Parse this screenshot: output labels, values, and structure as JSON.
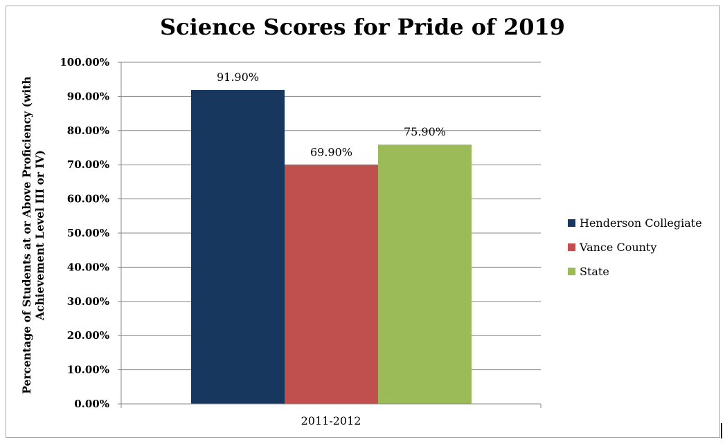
{
  "chart_data": {
    "type": "bar",
    "title": "Science Scores for Pride of 2019",
    "ylabel": "Percentage of Students at or Above Proficiency (with Achievement Level III or IV)",
    "xlabel": "",
    "categories": [
      "2011-2012"
    ],
    "series": [
      {
        "name": "Henderson Collegiate",
        "values": [
          91.9
        ],
        "color": "#17375e",
        "label": "91.90%"
      },
      {
        "name": "Vance County",
        "values": [
          69.9
        ],
        "color": "#c0504d",
        "label": "69.90%"
      },
      {
        "name": "State",
        "values": [
          75.9
        ],
        "color": "#9bbb59",
        "label": "75.90%"
      }
    ],
    "ylim": [
      0,
      100
    ],
    "yticks": [
      "0.00%",
      "10.00%",
      "20.00%",
      "30.00%",
      "40.00%",
      "50.00%",
      "60.00%",
      "70.00%",
      "80.00%",
      "90.00%",
      "100.00%"
    ],
    "grid": true,
    "legend_position": "right"
  }
}
